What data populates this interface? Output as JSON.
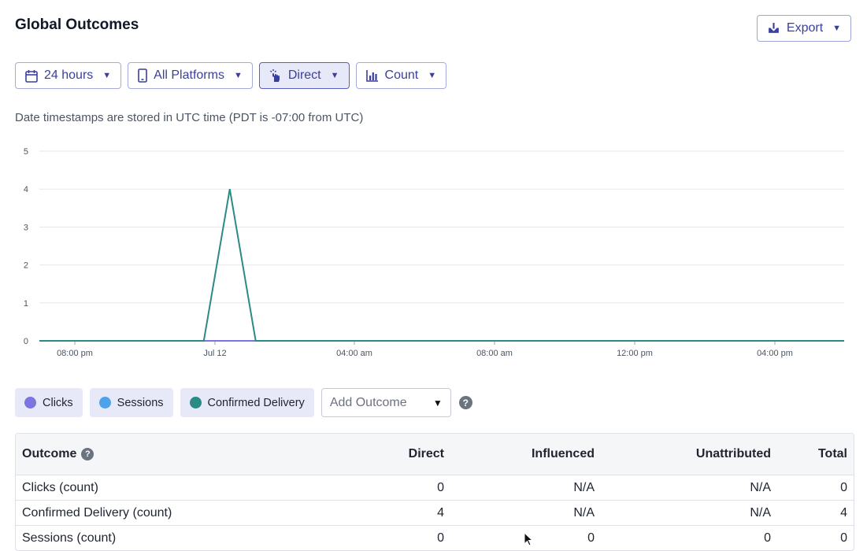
{
  "header": {
    "title": "Global Outcomes",
    "export_label": "Export"
  },
  "filters": [
    {
      "label": "24 hours",
      "icon": "calendar-icon"
    },
    {
      "label": "All Platforms",
      "icon": "phone-icon"
    },
    {
      "label": "Direct",
      "icon": "tap-icon",
      "active": true
    },
    {
      "label": "Count",
      "icon": "bar-chart-icon"
    }
  ],
  "note": "Date timestamps are stored in UTC time (PDT is -07:00 from UTC)",
  "chart_data": {
    "type": "line",
    "title": "",
    "xlabel": "",
    "ylabel": "",
    "ylim": [
      0,
      5
    ],
    "y_ticks": [
      "0",
      "1",
      "2",
      "3",
      "4",
      "5"
    ],
    "x_ticks": [
      "08:00 pm",
      "Jul 12",
      "04:00 am",
      "08:00 am",
      "12:00 pm",
      "04:00 pm"
    ],
    "grid": true,
    "series": [
      {
        "name": "Confirmed Delivery",
        "color": "#2a8a84",
        "x": [
          "Jul 11 16:40",
          "Jul 11 23:00",
          "Jul 12 00:00",
          "Jul 12 01:00",
          "Jul 12 23:40"
        ],
        "values": [
          0,
          0,
          4,
          0,
          0
        ]
      },
      {
        "name": "Clicks",
        "color": "#7c74e0",
        "x": [
          "Jul 11 16:40",
          "Jul 12 23:40"
        ],
        "values": [
          0,
          0
        ]
      }
    ]
  },
  "legend": {
    "items": [
      {
        "label": "Clicks",
        "color": "#7c74e0"
      },
      {
        "label": "Sessions",
        "color": "#4ea3e8"
      },
      {
        "label": "Confirmed Delivery",
        "color": "#2a8a84"
      }
    ],
    "add_outcome_placeholder": "Add Outcome"
  },
  "table": {
    "headers": [
      "Outcome",
      "Direct",
      "Influenced",
      "Unattributed",
      "Total"
    ],
    "rows": [
      [
        "Clicks (count)",
        "0",
        "N/A",
        "N/A",
        "0"
      ],
      [
        "Confirmed Delivery (count)",
        "4",
        "N/A",
        "N/A",
        "4"
      ],
      [
        "Sessions (count)",
        "0",
        "0",
        "0",
        "0"
      ]
    ]
  }
}
